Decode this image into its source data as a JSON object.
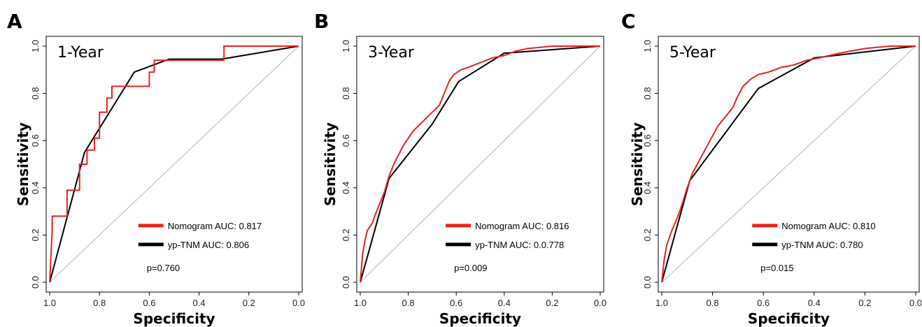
{
  "chart_data": [
    {
      "type": "line",
      "panel_letter": "A",
      "title": "1-Year",
      "xlabel": "Specificity",
      "ylabel": "Sensitivity",
      "xlim": [
        1.0,
        0.0
      ],
      "ylim": [
        0.0,
        1.0
      ],
      "x_ticks": [
        "1.0",
        "0.8",
        "0.6",
        "0.4",
        "0.2",
        "0.0"
      ],
      "y_ticks": [
        "0.0",
        "0.2",
        "0.4",
        "0.6",
        "0.8",
        "1.0"
      ],
      "legend_position": "bottom-right",
      "pvalue": "p=0.760",
      "series": [
        {
          "name": "Nomogram AUC: 0.817",
          "color": "#e8211f",
          "points": [
            [
              1.0,
              0.0
            ],
            [
              0.99,
              0.22
            ],
            [
              0.99,
              0.28
            ],
            [
              0.93,
              0.28
            ],
            [
              0.93,
              0.39
            ],
            [
              0.88,
              0.39
            ],
            [
              0.88,
              0.5
            ],
            [
              0.85,
              0.5
            ],
            [
              0.85,
              0.56
            ],
            [
              0.82,
              0.56
            ],
            [
              0.82,
              0.61
            ],
            [
              0.8,
              0.61
            ],
            [
              0.8,
              0.72
            ],
            [
              0.77,
              0.72
            ],
            [
              0.77,
              0.78
            ],
            [
              0.75,
              0.78
            ],
            [
              0.75,
              0.83
            ],
            [
              0.6,
              0.83
            ],
            [
              0.6,
              0.89
            ],
            [
              0.58,
              0.89
            ],
            [
              0.58,
              0.94
            ],
            [
              0.3,
              0.94
            ],
            [
              0.3,
              1.0
            ],
            [
              0.0,
              1.0
            ]
          ]
        },
        {
          "name": "yp-TNM AUC: 0.806",
          "color": "#000000",
          "points": [
            [
              1.0,
              0.0
            ],
            [
              0.86,
              0.55
            ],
            [
              0.66,
              0.89
            ],
            [
              0.52,
              0.945
            ],
            [
              0.31,
              0.945
            ],
            [
              0.0,
              1.0
            ]
          ]
        }
      ]
    },
    {
      "type": "line",
      "panel_letter": "B",
      "title": "3-Year",
      "xlabel": "Specificity",
      "ylabel": "Sensitivity",
      "xlim": [
        1.0,
        0.0
      ],
      "ylim": [
        0.0,
        1.0
      ],
      "x_ticks": [
        "1.0",
        "0.8",
        "0.6",
        "0.4",
        "0.2",
        "0.0"
      ],
      "y_ticks": [
        "0.0",
        "0.2",
        "0.4",
        "0.6",
        "0.8",
        "1.0"
      ],
      "legend_position": "bottom-right",
      "pvalue": "p=0.009",
      "series": [
        {
          "name": "Nomogram AUC: 0.816",
          "color": "#e8211f",
          "points": [
            [
              1.0,
              0.0
            ],
            [
              0.99,
              0.12
            ],
            [
              0.98,
              0.18
            ],
            [
              0.97,
              0.22
            ],
            [
              0.95,
              0.25
            ],
            [
              0.94,
              0.28
            ],
            [
              0.92,
              0.33
            ],
            [
              0.9,
              0.38
            ],
            [
              0.88,
              0.45
            ],
            [
              0.86,
              0.5
            ],
            [
              0.84,
              0.54
            ],
            [
              0.82,
              0.58
            ],
            [
              0.8,
              0.61
            ],
            [
              0.78,
              0.64
            ],
            [
              0.75,
              0.67
            ],
            [
              0.73,
              0.69
            ],
            [
              0.7,
              0.72
            ],
            [
              0.67,
              0.75
            ],
            [
              0.65,
              0.8
            ],
            [
              0.63,
              0.85
            ],
            [
              0.61,
              0.88
            ],
            [
              0.58,
              0.9
            ],
            [
              0.55,
              0.91
            ],
            [
              0.5,
              0.93
            ],
            [
              0.45,
              0.95
            ],
            [
              0.4,
              0.96
            ],
            [
              0.35,
              0.98
            ],
            [
              0.3,
              0.99
            ],
            [
              0.2,
              1.0
            ],
            [
              0.0,
              1.0
            ]
          ]
        },
        {
          "name": "yp-TNM AUC: 0.0.778",
          "color": "#000000",
          "points": [
            [
              1.0,
              0.0
            ],
            [
              0.88,
              0.44
            ],
            [
              0.7,
              0.67
            ],
            [
              0.59,
              0.85
            ],
            [
              0.4,
              0.97
            ],
            [
              0.0,
              1.0
            ]
          ]
        }
      ]
    },
    {
      "type": "line",
      "panel_letter": "C",
      "title": "5-Year",
      "xlabel": "Specificity",
      "ylabel": "Sensitivity",
      "xlim": [
        1.0,
        0.0
      ],
      "ylim": [
        0.0,
        1.0
      ],
      "x_ticks": [
        "1.0",
        "0.8",
        "0.6",
        "0.4",
        "0.2",
        "0.0"
      ],
      "y_ticks": [
        "0.0",
        "0.2",
        "0.4",
        "0.6",
        "0.8",
        "1.0"
      ],
      "legend_position": "bottom-right",
      "pvalue": "p=0.015",
      "series": [
        {
          "name": "Nomogram AUC: 0.810",
          "color": "#e8211f",
          "points": [
            [
              1.0,
              0.0
            ],
            [
              0.99,
              0.1
            ],
            [
              0.98,
              0.16
            ],
            [
              0.96,
              0.22
            ],
            [
              0.94,
              0.27
            ],
            [
              0.92,
              0.33
            ],
            [
              0.9,
              0.4
            ],
            [
              0.88,
              0.46
            ],
            [
              0.86,
              0.5
            ],
            [
              0.84,
              0.54
            ],
            [
              0.82,
              0.58
            ],
            [
              0.8,
              0.62
            ],
            [
              0.78,
              0.66
            ],
            [
              0.75,
              0.7
            ],
            [
              0.72,
              0.74
            ],
            [
              0.7,
              0.79
            ],
            [
              0.68,
              0.83
            ],
            [
              0.65,
              0.86
            ],
            [
              0.62,
              0.88
            ],
            [
              0.58,
              0.89
            ],
            [
              0.53,
              0.91
            ],
            [
              0.48,
              0.92
            ],
            [
              0.43,
              0.94
            ],
            [
              0.38,
              0.95
            ],
            [
              0.3,
              0.97
            ],
            [
              0.2,
              0.99
            ],
            [
              0.1,
              1.0
            ],
            [
              0.0,
              1.0
            ]
          ]
        },
        {
          "name": "yp-TNM AUC: 0.780",
          "color": "#000000",
          "points": [
            [
              1.0,
              0.0
            ],
            [
              0.89,
              0.43
            ],
            [
              0.62,
              0.82
            ],
            [
              0.4,
              0.95
            ],
            [
              0.0,
              1.0
            ]
          ]
        }
      ]
    }
  ]
}
